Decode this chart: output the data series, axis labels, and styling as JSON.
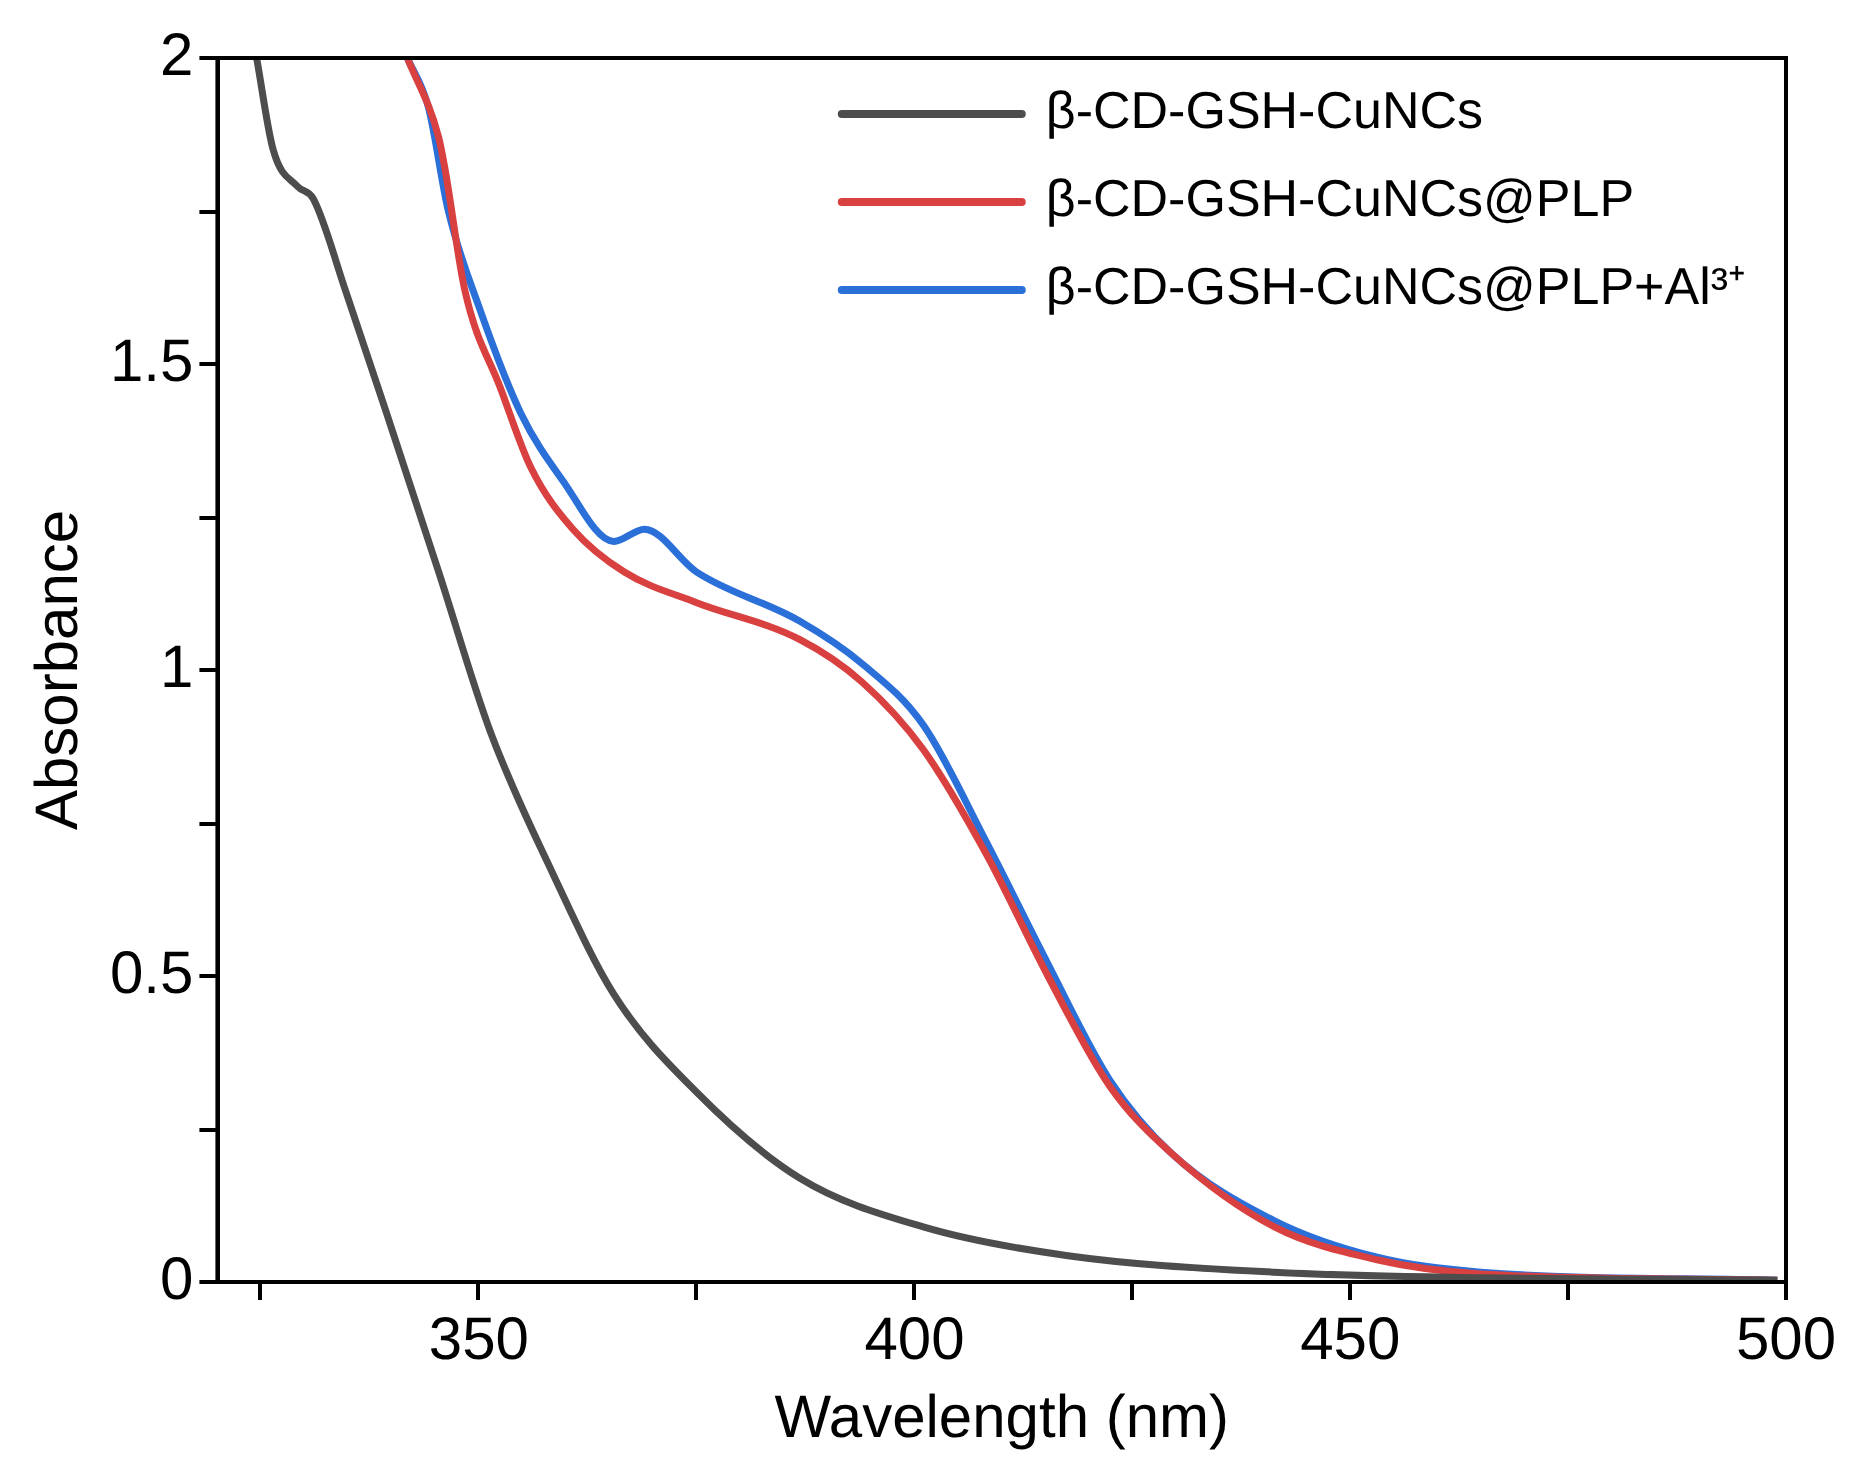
{
  "chart_data": {
    "type": "line",
    "xlabel": "Wavelength (nm)",
    "ylabel": "Absorbance",
    "xlim": [
      320,
      500
    ],
    "xticks": [
      {
        "value": 325,
        "label": null
      },
      350,
      {
        "value": 375,
        "label": null
      },
      400,
      {
        "value": 425,
        "label": null
      },
      450,
      {
        "value": 475,
        "label": null
      },
      500
    ],
    "ylim": [
      0,
      2
    ],
    "yticks": [
      0,
      {
        "value": 0.25,
        "label": null
      },
      0.5,
      {
        "value": 0.75,
        "label": null
      },
      1,
      {
        "value": 1.25,
        "label": null
      },
      1.5,
      {
        "value": 1.75,
        "label": null
      },
      2
    ],
    "grid": false,
    "legend": "top right",
    "marker": "none",
    "line_style": "solid",
    "series": [
      {
        "name": "β-CD-GSH-CuNCs",
        "color": "#4d4d4d",
        "x": [
          324.5,
          326.4,
          329.2,
          331,
          334.7,
          339.4,
          345.4,
          351.3,
          358.4,
          365.5,
          375,
          386.8,
          401,
          417.6,
          441.3,
          465,
          499
        ],
        "values": [
          2.0,
          1.85,
          1.79,
          1.77,
          1.62,
          1.42,
          1.16,
          0.9,
          0.67,
          0.47,
          0.31,
          0.17,
          0.09,
          0.043,
          0.016,
          0.007,
          0.003
        ]
      },
      {
        "name": "β-CD-GSH-CuNCs@PLP",
        "color": "#d94040",
        "x": [
          341.8,
          345.4,
          346.1,
          348.4,
          352.5,
          356,
          360.8,
          366.7,
          375,
          386.8,
          394,
          401,
          408.2,
          415.3,
          422.4,
          429.5,
          441.3,
          453.2,
          465,
          499
        ],
        "values": [
          2.0,
          1.87,
          1.82,
          1.62,
          1.46,
          1.33,
          1.23,
          1.16,
          1.11,
          1.05,
          0.98,
          0.87,
          0.7,
          0.5,
          0.32,
          0.21,
          0.09,
          0.036,
          0.013,
          0.003
        ]
      },
      {
        "name": "β-CD-GSH-CuNCs@PLP+Al³⁺",
        "color": "#2b6fd9",
        "x": [
          341.8,
          344.2,
          346.5,
          350.1,
          354.8,
          359.6,
          365.5,
          369,
          375,
          386.8,
          394,
          401,
          408.2,
          415.3,
          422.4,
          429.5,
          441.3,
          453.2,
          465,
          499
        ],
        "values": [
          2.0,
          1.92,
          1.75,
          1.59,
          1.42,
          1.31,
          1.21,
          1.23,
          1.16,
          1.08,
          1.01,
          0.91,
          0.72,
          0.52,
          0.33,
          0.21,
          0.1,
          0.04,
          0.016,
          0.003
        ]
      }
    ]
  }
}
